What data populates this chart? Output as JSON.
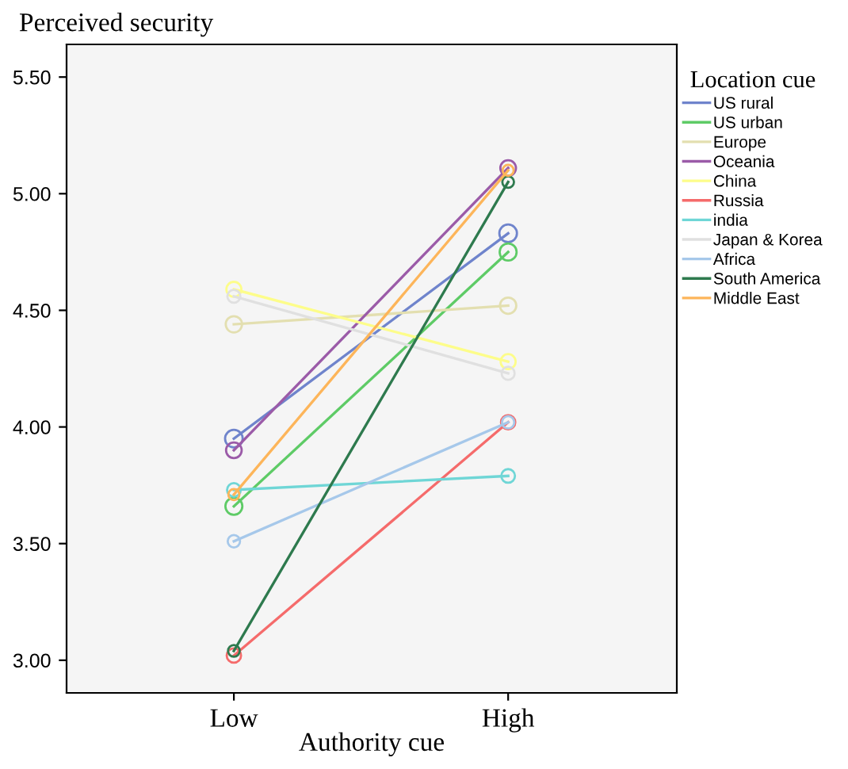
{
  "chart_data": {
    "type": "line",
    "ylabel": "Perceived security",
    "xlabel": "Authority cue",
    "legend_title": "Location cue",
    "categories": [
      "Low",
      "High"
    ],
    "ylim": [
      2.86,
      5.64
    ],
    "yticks": [
      {
        "value": 3,
        "label": "3.00"
      },
      {
        "value": 3.5,
        "label": "3.50"
      },
      {
        "value": 4,
        "label": "4.00"
      },
      {
        "value": 4.5,
        "label": "4.50"
      },
      {
        "value": 5,
        "label": "5.00"
      },
      {
        "value": 5.5,
        "label": "5.50"
      }
    ],
    "grid": false,
    "legend": "top right",
    "marker": "circle",
    "line_style": "solid",
    "series": [
      {
        "name": "US rural",
        "color": "#6f84cc",
        "values": [
          3.95,
          4.83
        ]
      },
      {
        "name": "US urban",
        "color": "#5ecb66",
        "values": [
          3.66,
          4.75
        ]
      },
      {
        "name": "Europe",
        "color": "#e3dfb0",
        "values": [
          4.44,
          4.52
        ]
      },
      {
        "name": "Oceania",
        "color": "#9b5ba8",
        "values": [
          3.9,
          5.11
        ]
      },
      {
        "name": "China",
        "color": "#fdfd8a",
        "values": [
          4.59,
          4.28
        ]
      },
      {
        "name": "Russia",
        "color": "#f56b6b",
        "values": [
          3.02,
          4.02
        ]
      },
      {
        "name": "india",
        "color": "#6fd6d6",
        "values": [
          3.73,
          3.79
        ]
      },
      {
        "name": "Japan & Korea",
        "color": "#e0e0e0",
        "values": [
          4.56,
          4.23
        ]
      },
      {
        "name": "Africa",
        "color": "#a6c8ea",
        "values": [
          3.51,
          4.02
        ]
      },
      {
        "name": "South America",
        "color": "#2e7a4e",
        "values": [
          3.04,
          5.05
        ]
      },
      {
        "name": "Middle East",
        "color": "#fdb55a",
        "values": [
          3.71,
          5.1
        ]
      }
    ]
  }
}
